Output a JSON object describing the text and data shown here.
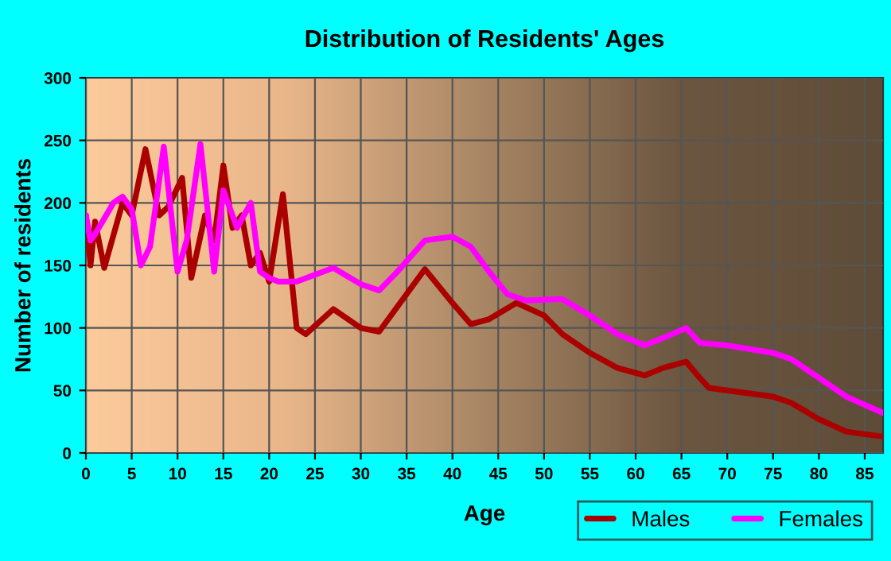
{
  "chart_data": {
    "type": "line",
    "title": "Distribution of Residents' Ages",
    "xlabel": "Age",
    "ylabel": "Number of residents",
    "xlim": [
      0,
      87
    ],
    "ylim": [
      0,
      300
    ],
    "xticks": [
      0,
      5,
      10,
      15,
      20,
      25,
      30,
      35,
      40,
      45,
      50,
      55,
      60,
      65,
      70,
      75,
      80,
      85
    ],
    "yticks": [
      0,
      50,
      100,
      150,
      200,
      250,
      300
    ],
    "grid": true,
    "legend": "bottom right",
    "marker": "none",
    "line_style": "solid",
    "series": [
      {
        "name": "Males",
        "color": "#aa0000",
        "x": [
          0,
          0.5,
          1,
          2,
          4,
          5,
          6.5,
          8,
          9,
          10.5,
          11.5,
          13,
          14,
          15,
          16,
          17,
          18,
          19,
          20,
          21.5,
          23,
          24,
          27,
          30,
          32,
          37,
          40,
          42,
          44,
          47,
          50,
          52,
          55,
          58,
          61,
          63,
          65.5,
          67,
          68,
          70,
          75,
          77,
          80,
          83,
          87
        ],
        "values": [
          190,
          150,
          185,
          148,
          200,
          190,
          243,
          190,
          197,
          220,
          140,
          190,
          170,
          230,
          180,
          190,
          150,
          160,
          137,
          207,
          100,
          95,
          115,
          100,
          97,
          147,
          120,
          103,
          107,
          120,
          110,
          95,
          80,
          68,
          62,
          68,
          73,
          60,
          52,
          50,
          45,
          40,
          27,
          17,
          13
        ]
      },
      {
        "name": "Females",
        "color": "#ff00ff",
        "x": [
          0,
          0.5,
          1,
          3,
          4,
          5,
          6,
          7,
          8.5,
          10,
          11,
          12.5,
          14,
          15,
          16.5,
          18,
          19,
          20,
          21,
          23,
          27,
          30,
          32,
          34,
          37,
          40,
          42,
          44,
          46,
          48,
          52,
          55,
          58,
          61,
          64,
          65.5,
          67,
          70,
          75,
          77,
          80,
          83,
          87
        ],
        "values": [
          190,
          170,
          175,
          200,
          205,
          195,
          150,
          165,
          245,
          145,
          170,
          247,
          145,
          210,
          180,
          200,
          145,
          140,
          137,
          137,
          148,
          135,
          130,
          145,
          170,
          173,
          165,
          145,
          127,
          122,
          123,
          110,
          95,
          86,
          95,
          100,
          88,
          86,
          80,
          75,
          60,
          45,
          32
        ]
      }
    ]
  }
}
